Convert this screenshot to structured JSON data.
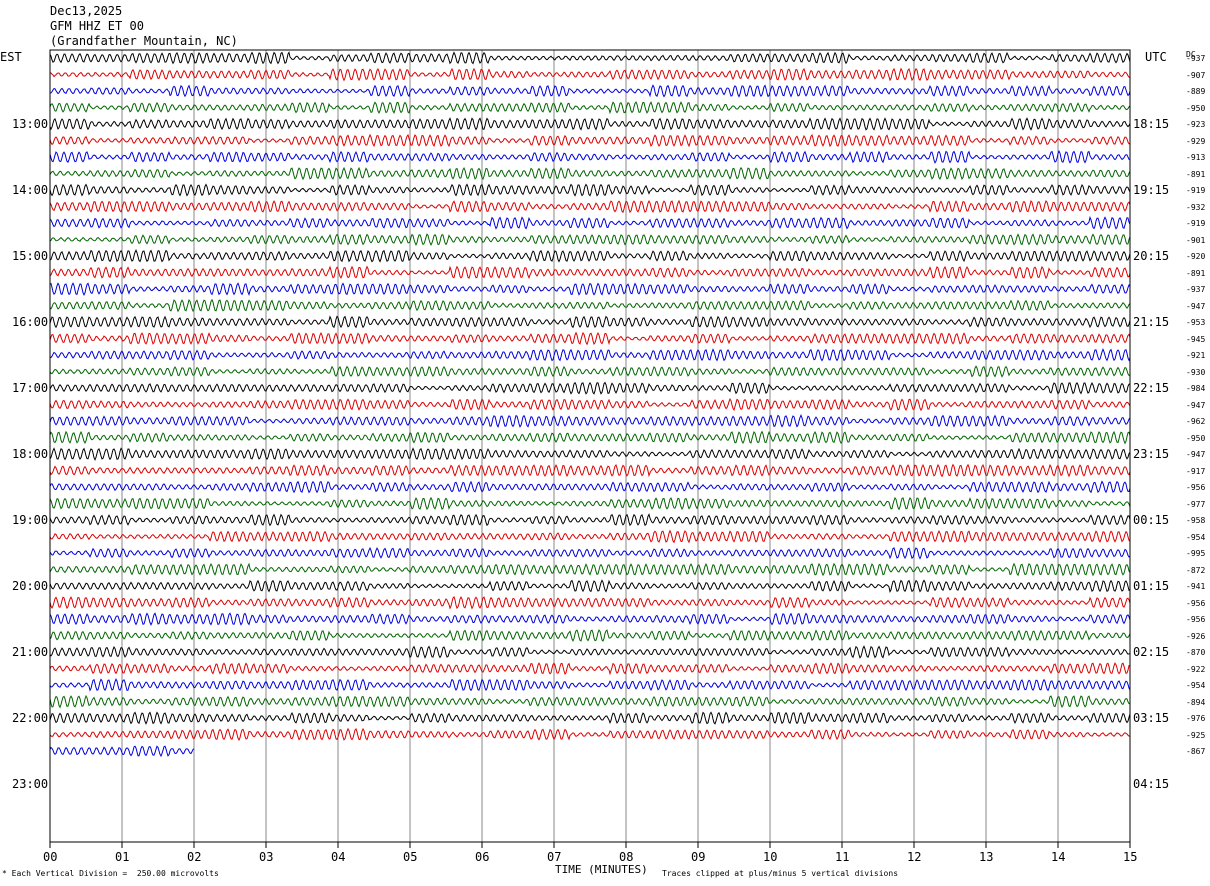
{
  "header": {
    "date": "Dec13,2025",
    "channel": "GFM HHZ ET 00",
    "location": "(Grandfather Mountain, NC)"
  },
  "left_timezone": "EST",
  "right_timezone": "UTC",
  "dc_label": "DC",
  "footer": {
    "scale_note": "Each Vertical Division =  250.00 microvolts",
    "x_axis_title": "TIME (MINUTES)",
    "clip_note": "Traces clipped at plus/minus 5 vertical divisions"
  },
  "chart_data": {
    "type": "line",
    "title": "",
    "xlabel": "TIME (MINUTES)",
    "ylabel": "",
    "xlim": [
      0,
      15
    ],
    "x_ticks": [
      "00",
      "01",
      "02",
      "03",
      "04",
      "05",
      "06",
      "07",
      "08",
      "09",
      "10",
      "11",
      "12",
      "13",
      "14",
      "15"
    ],
    "trace_interval_minutes": 15,
    "left_hour_labels": [
      "13:00",
      "14:00",
      "15:00",
      "16:00",
      "17:00",
      "18:00",
      "19:00",
      "20:00",
      "21:00",
      "22:00",
      "23:00"
    ],
    "right_hour_labels": [
      "18:15",
      "19:15",
      "20:15",
      "21:15",
      "22:15",
      "23:15",
      "00:15",
      "01:15",
      "02:15",
      "03:15",
      "04:15"
    ],
    "trace_colors": [
      "#000000",
      "#dd0000",
      "#0000dd",
      "#006600"
    ],
    "dc_offsets": [
      "-937",
      "-907",
      "-889",
      "-950",
      "-923",
      "-929",
      "-913",
      "-891",
      "-919",
      "-932",
      "-919",
      "-901",
      "-920",
      "-891",
      "-937",
      "-947",
      "-953",
      "-945",
      "-921",
      "-930",
      "-984",
      "-947",
      "-962",
      "-950",
      "-947",
      "-917",
      "-956",
      "-977",
      "-958",
      "-954",
      "-995",
      "-872",
      "-941",
      "-956",
      "-956",
      "-926",
      "-870",
      "-922",
      "-954",
      "-894",
      "-976",
      "-925",
      "-867"
    ],
    "trace_count": 43,
    "last_trace_end_minute": 2.0
  }
}
